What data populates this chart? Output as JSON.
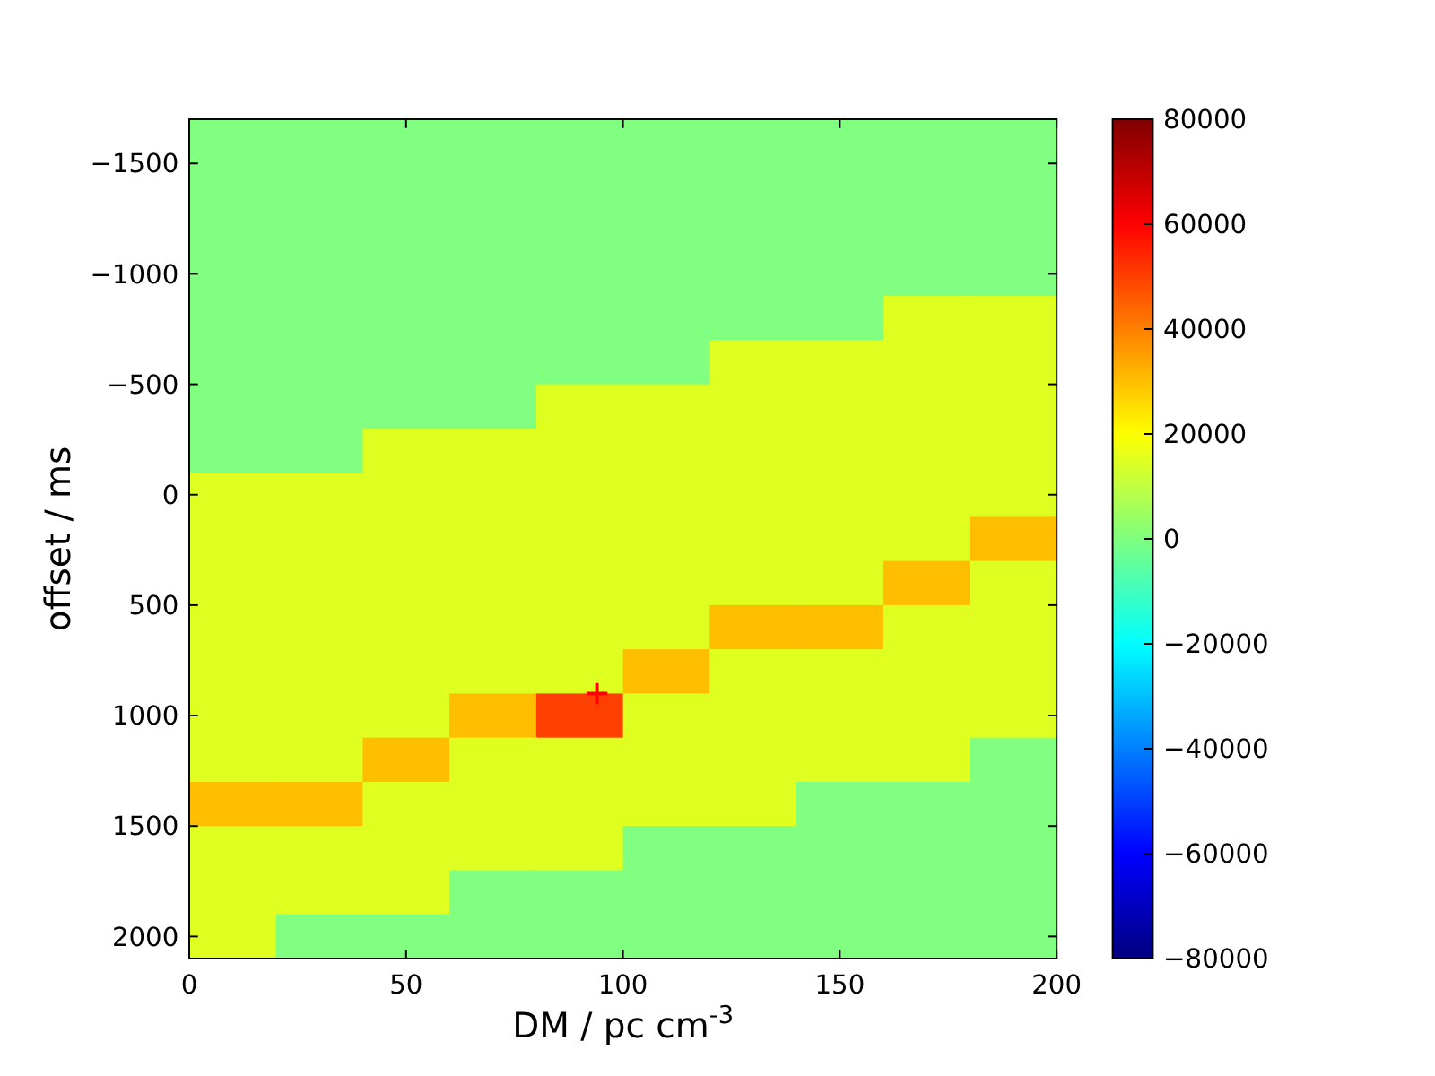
{
  "chart_data": {
    "type": "heatmap",
    "xlabel": "DM / pc cm$^{-3}$",
    "ylabel": "offset / ms",
    "xlim": [
      0,
      200
    ],
    "xticks": [
      0,
      50,
      100,
      150,
      200
    ],
    "ylim": [
      2100,
      -1700
    ],
    "yticks": [
      {
        "value": -1500,
        "label": "−1500"
      },
      {
        "value": -1000,
        "label": "−1000"
      },
      {
        "value": -500,
        "label": "−500"
      },
      0,
      500,
      1000,
      1500,
      2000
    ],
    "clim": [
      -80000,
      80000
    ],
    "cticks": [
      {
        "value": -80000,
        "label": "−80000"
      },
      {
        "value": -60000,
        "label": "−60000"
      },
      {
        "value": -40000,
        "label": "−40000"
      },
      {
        "value": -20000,
        "label": "−20000"
      },
      0,
      20000,
      40000,
      60000,
      80000
    ],
    "cells": [
      [
        0,
        0,
        0,
        0,
        0,
        0,
        0,
        0,
        0,
        0
      ],
      [
        0,
        0,
        0,
        0,
        0,
        0,
        0,
        0,
        0,
        0
      ],
      [
        0,
        0,
        0,
        0,
        0,
        0,
        0,
        0,
        0,
        0
      ],
      [
        0,
        0,
        0,
        0,
        0,
        0,
        0,
        0,
        0,
        0
      ],
      [
        0,
        0,
        0,
        0,
        0,
        0,
        0,
        0,
        15000,
        15000
      ],
      [
        0,
        0,
        0,
        0,
        0,
        0,
        15000,
        15000,
        15000,
        15000
      ],
      [
        0,
        0,
        0,
        0,
        15000,
        15000,
        15000,
        15000,
        15000,
        15000
      ],
      [
        0,
        0,
        15000,
        15000,
        15000,
        15000,
        15000,
        15000,
        15000,
        15000
      ],
      [
        15000,
        15000,
        15000,
        15000,
        15000,
        15000,
        15000,
        15000,
        15000,
        15000
      ],
      [
        15000,
        15000,
        15000,
        15000,
        15000,
        15000,
        15000,
        15000,
        15000,
        30000
      ],
      [
        15000,
        15000,
        15000,
        15000,
        15000,
        15000,
        15000,
        15000,
        30000,
        15000
      ],
      [
        15000,
        15000,
        15000,
        15000,
        15000,
        15000,
        30000,
        30000,
        15000,
        15000
      ],
      [
        15000,
        15000,
        15000,
        15000,
        15000,
        30000,
        15000,
        15000,
        15000,
        15000
      ],
      [
        15000,
        15000,
        15000,
        30000,
        50000,
        15000,
        15000,
        15000,
        15000,
        15000
      ],
      [
        15000,
        15000,
        30000,
        15000,
        15000,
        15000,
        15000,
        15000,
        15000,
        0
      ],
      [
        30000,
        30000,
        15000,
        15000,
        15000,
        15000,
        15000,
        0,
        0,
        0
      ],
      [
        15000,
        15000,
        15000,
        15000,
        15000,
        0,
        0,
        0,
        0,
        0
      ],
      [
        15000,
        15000,
        15000,
        0,
        0,
        0,
        0,
        0,
        0,
        0
      ],
      [
        15000,
        0,
        0,
        0,
        0,
        0,
        0,
        0,
        0,
        0
      ]
    ],
    "series": [
      {
        "type": "scatter",
        "x": [
          94
        ],
        "values": [
          900
        ],
        "color": "#ff0000"
      }
    ],
    "marker": "cross"
  }
}
